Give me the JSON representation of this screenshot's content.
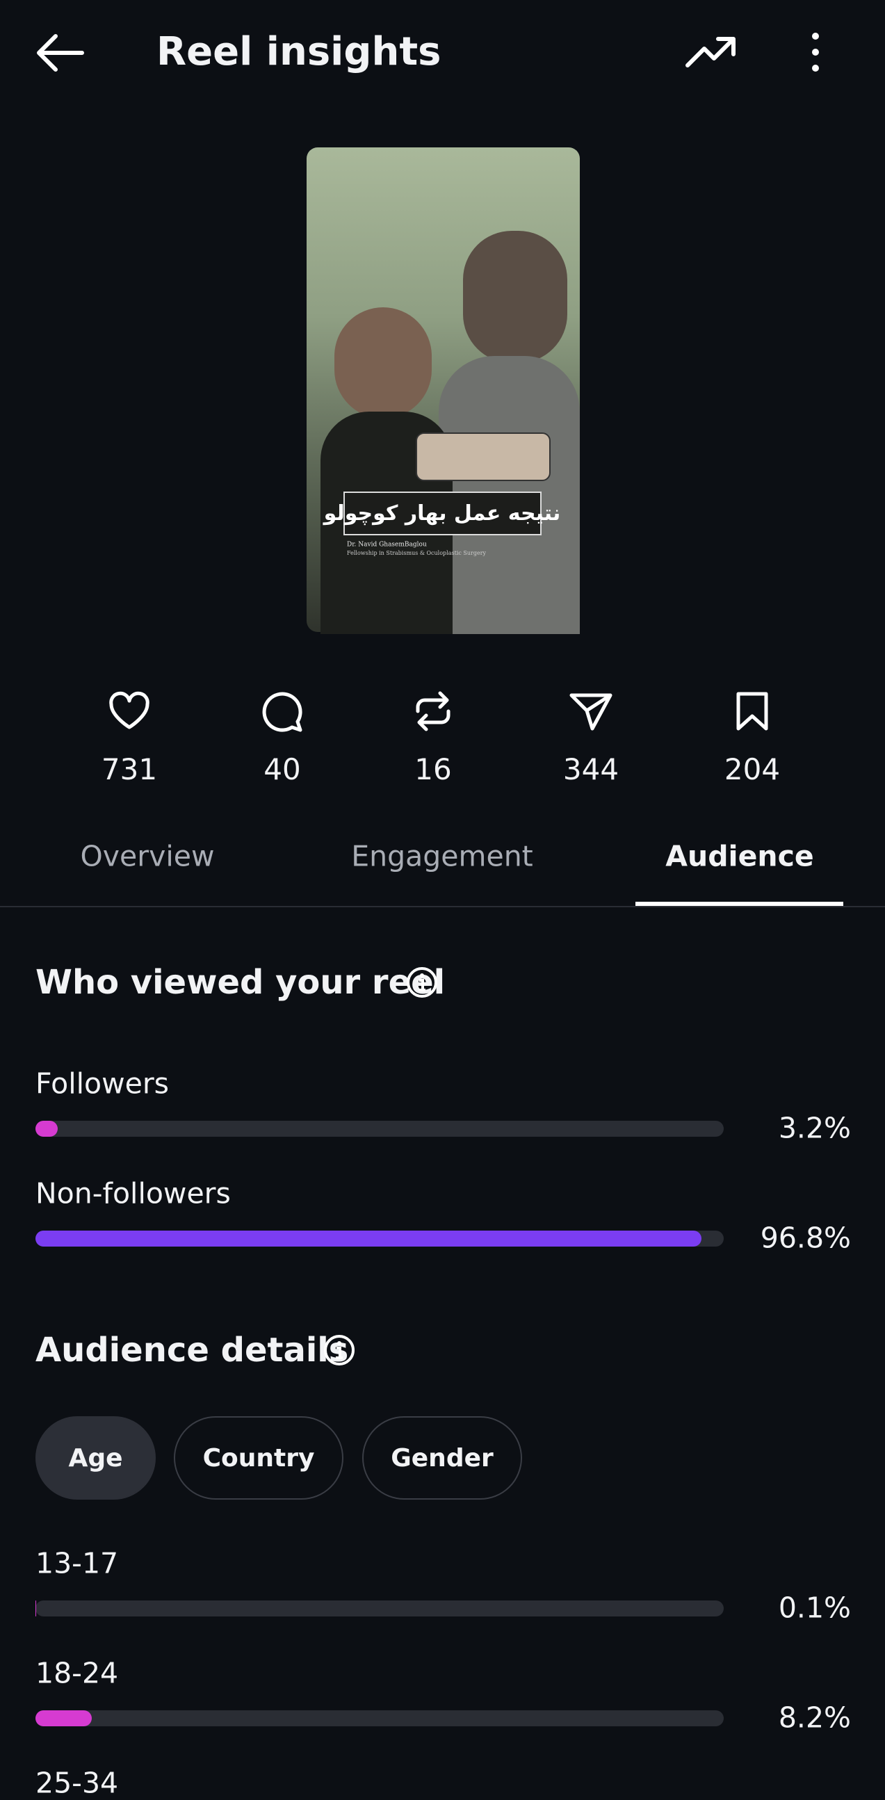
{
  "header": {
    "title": "Reel insights"
  },
  "thumbnail": {
    "caption": "نتیجه عمل بهار کوچولو",
    "credit": "Dr. Navid GhasemBaglou",
    "subcredit": "Fellowship in Strabismus & Oculoplastic Surgery"
  },
  "stats": [
    731,
    40,
    16,
    344,
    204
  ],
  "tabs": [
    "Overview",
    "Engagement",
    "Audience"
  ],
  "viewers": {
    "title": "Who viewed your reel",
    "xlim": [
      0,
      100
    ],
    "rows": [
      {
        "label": "Followers",
        "value": 3.2,
        "value_label": "3.2%",
        "color": "#d63bd1"
      },
      {
        "label": "Non-followers",
        "value": 96.8,
        "value_label": "96.8%",
        "color": "#7b3df2"
      }
    ]
  },
  "audience": {
    "title": "Audience details",
    "filters": [
      "Age",
      "Country",
      "Gender"
    ],
    "xlim": [
      0,
      100
    ],
    "rows": [
      {
        "label": "13-17",
        "value": 0.1,
        "value_label": "0.1%",
        "color": "#d63bd1"
      },
      {
        "label": "18-24",
        "value": 8.2,
        "value_label": "8.2%",
        "color": "#d63bd1"
      },
      {
        "label": "25-34"
      }
    ]
  }
}
